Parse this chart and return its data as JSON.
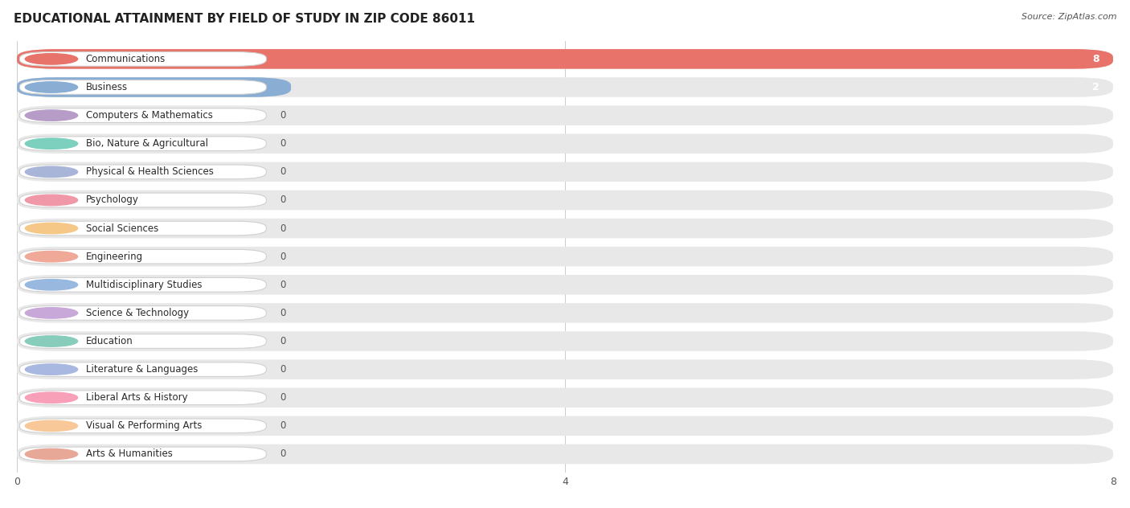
{
  "title": "EDUCATIONAL ATTAINMENT BY FIELD OF STUDY IN ZIP CODE 86011",
  "source": "Source: ZipAtlas.com",
  "categories": [
    "Communications",
    "Business",
    "Computers & Mathematics",
    "Bio, Nature & Agricultural",
    "Physical & Health Sciences",
    "Psychology",
    "Social Sciences",
    "Engineering",
    "Multidisciplinary Studies",
    "Science & Technology",
    "Education",
    "Literature & Languages",
    "Liberal Arts & History",
    "Visual & Performing Arts",
    "Arts & Humanities"
  ],
  "values": [
    8,
    2,
    0,
    0,
    0,
    0,
    0,
    0,
    0,
    0,
    0,
    0,
    0,
    0,
    0
  ],
  "bar_colors": [
    "#E8736A",
    "#8AADD4",
    "#B89CC8",
    "#7DCFBE",
    "#A8B4D8",
    "#F098A8",
    "#F5C888",
    "#F0A898",
    "#98B8E0",
    "#C8A8D8",
    "#88CCBC",
    "#A8B8E0",
    "#F8A0B8",
    "#F8C898",
    "#E8A898"
  ],
  "xlim": [
    0,
    8
  ],
  "xticks": [
    0,
    4,
    8
  ],
  "background_color": "#ffffff",
  "bar_background_color": "#e8e8e8",
  "title_fontsize": 11,
  "source_fontsize": 8,
  "label_fontsize": 8.5
}
